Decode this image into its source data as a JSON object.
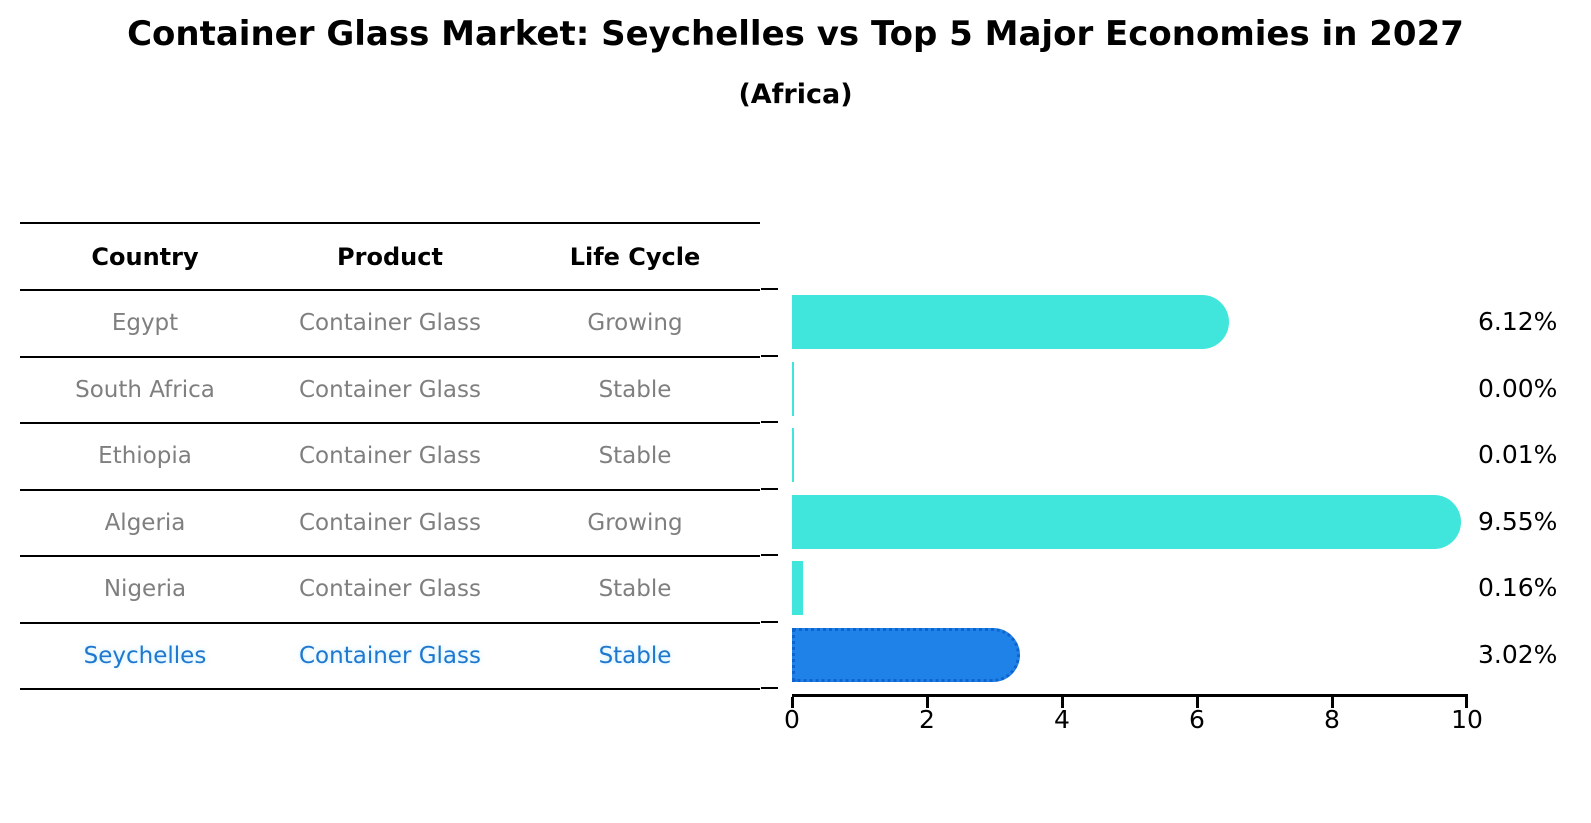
{
  "title": "Container Glass Market: Seychelles vs Top 5 Major Economies in 2027",
  "subtitle": "(Africa)",
  "table": {
    "headers": [
      "Country",
      "Product",
      "Life Cycle"
    ],
    "rows": [
      {
        "country": "Egypt",
        "product": "Container Glass",
        "life_cycle": "Growing"
      },
      {
        "country": "South Africa",
        "product": "Container Glass",
        "life_cycle": "Stable"
      },
      {
        "country": "Ethiopia",
        "product": "Container Glass",
        "life_cycle": "Stable"
      },
      {
        "country": "Algeria",
        "product": "Container Glass",
        "life_cycle": "Growing"
      },
      {
        "country": "Nigeria",
        "product": "Container Glass",
        "life_cycle": "Stable"
      },
      {
        "country": "Seychelles",
        "product": "Container Glass",
        "life_cycle": "Stable"
      }
    ],
    "highlight_row": "Seychelles"
  },
  "chart_data": {
    "type": "bar",
    "orientation": "horizontal",
    "title": "Container Glass Market: Seychelles vs Top 5 Major Economies in 2027",
    "subtitle": "(Africa)",
    "categories": [
      "Egypt",
      "South Africa",
      "Ethiopia",
      "Algeria",
      "Nigeria",
      "Seychelles"
    ],
    "values": [
      6.12,
      0.0,
      0.01,
      9.55,
      0.16,
      3.02
    ],
    "value_labels": [
      "6.12%",
      "0.00%",
      "0.01%",
      "9.55%",
      "0.16%",
      "3.02%"
    ],
    "xlabel": "",
    "ylabel": "",
    "xlim": [
      0,
      10
    ],
    "xticks": [
      "0",
      "2",
      "4",
      "6",
      "8",
      "10"
    ],
    "grid": false,
    "legend": false,
    "bar_color": "#40E5DC",
    "highlight_index": 5,
    "highlight_color": "#1E82E8",
    "highlight_border_color": "#0E63CF",
    "highlight_text_color": "#1F77CE"
  }
}
